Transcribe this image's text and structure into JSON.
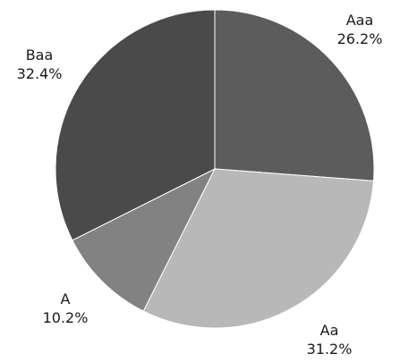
{
  "chart_data": {
    "type": "pie",
    "title": "",
    "categories": [
      "Aaa",
      "Aa",
      "A",
      "Baa"
    ],
    "values": [
      26.2,
      31.2,
      10.2,
      32.4
    ],
    "value_labels": [
      "26.2%",
      "31.2%",
      "10.2%",
      "32.4%"
    ],
    "colors": [
      "#5c5c5c",
      "#b8b8b8",
      "#828282",
      "#4a4a4a"
    ],
    "start_angle": "12 o'clock",
    "direction": "clockwise",
    "legend": "none",
    "label_color": "#1a1a1a",
    "slice_border_color": "#ffffff"
  }
}
